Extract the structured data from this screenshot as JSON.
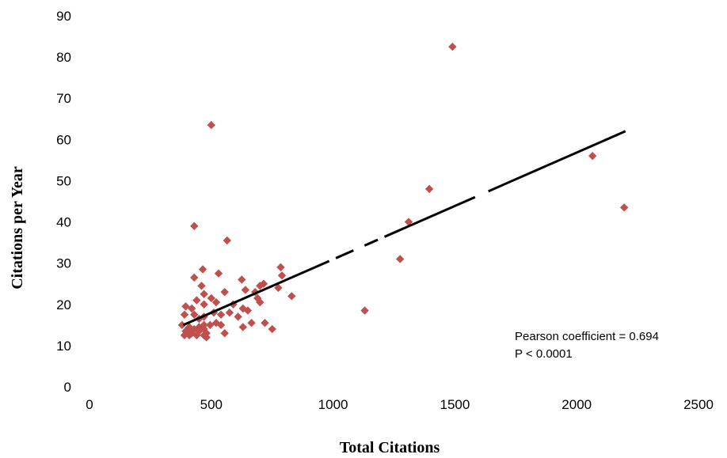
{
  "chart_data": {
    "type": "scatter",
    "title": "",
    "xlabel": "Total Citations",
    "ylabel": "Citations per Year",
    "xlim": [
      0,
      2500
    ],
    "ylim": [
      0,
      90
    ],
    "xticks": [
      0,
      500,
      1000,
      1500,
      2000,
      2500
    ],
    "yticks": [
      0,
      10,
      20,
      30,
      40,
      50,
      60,
      70,
      80,
      90
    ],
    "grid": false,
    "marker_color": "#c0504d",
    "trendline_color": "#000000",
    "annotations": [
      "Pearson coefficient = 0.694",
      "P < 0.0001"
    ],
    "trendline": {
      "x": [
        385,
        2200
      ],
      "y": [
        15,
        62
      ]
    },
    "points": [
      {
        "x": 1490,
        "y": 82.5
      },
      {
        "x": 500,
        "y": 63.5
      },
      {
        "x": 2065,
        "y": 56
      },
      {
        "x": 2195,
        "y": 43.5
      },
      {
        "x": 1395,
        "y": 48
      },
      {
        "x": 1310,
        "y": 40
      },
      {
        "x": 430,
        "y": 39
      },
      {
        "x": 565,
        "y": 35.5
      },
      {
        "x": 1275,
        "y": 31
      },
      {
        "x": 530,
        "y": 27.5
      },
      {
        "x": 465,
        "y": 28.5
      },
      {
        "x": 430,
        "y": 26.5
      },
      {
        "x": 785,
        "y": 29
      },
      {
        "x": 790,
        "y": 27
      },
      {
        "x": 625,
        "y": 26
      },
      {
        "x": 715,
        "y": 25
      },
      {
        "x": 700,
        "y": 24.5
      },
      {
        "x": 460,
        "y": 24.5
      },
      {
        "x": 775,
        "y": 24
      },
      {
        "x": 640,
        "y": 23.5
      },
      {
        "x": 680,
        "y": 23
      },
      {
        "x": 555,
        "y": 23
      },
      {
        "x": 470,
        "y": 22.5
      },
      {
        "x": 830,
        "y": 22
      },
      {
        "x": 500,
        "y": 21.5
      },
      {
        "x": 690,
        "y": 21.5
      },
      {
        "x": 440,
        "y": 21
      },
      {
        "x": 520,
        "y": 20.5
      },
      {
        "x": 700,
        "y": 20.5
      },
      {
        "x": 590,
        "y": 20
      },
      {
        "x": 470,
        "y": 20
      },
      {
        "x": 395,
        "y": 19.5
      },
      {
        "x": 630,
        "y": 19
      },
      {
        "x": 420,
        "y": 19
      },
      {
        "x": 1130,
        "y": 18.5
      },
      {
        "x": 650,
        "y": 18.5
      },
      {
        "x": 575,
        "y": 18
      },
      {
        "x": 510,
        "y": 18
      },
      {
        "x": 430,
        "y": 17.5
      },
      {
        "x": 390,
        "y": 17.5
      },
      {
        "x": 540,
        "y": 17.5
      },
      {
        "x": 610,
        "y": 17
      },
      {
        "x": 470,
        "y": 17
      },
      {
        "x": 450,
        "y": 16.5
      },
      {
        "x": 720,
        "y": 15.5
      },
      {
        "x": 665,
        "y": 15.5
      },
      {
        "x": 520,
        "y": 15.5
      },
      {
        "x": 540,
        "y": 15
      },
      {
        "x": 495,
        "y": 15
      },
      {
        "x": 470,
        "y": 15
      },
      {
        "x": 380,
        "y": 15
      },
      {
        "x": 630,
        "y": 14.5
      },
      {
        "x": 450,
        "y": 14.5
      },
      {
        "x": 410,
        "y": 14.5
      },
      {
        "x": 750,
        "y": 14
      },
      {
        "x": 470,
        "y": 14
      },
      {
        "x": 430,
        "y": 14
      },
      {
        "x": 405,
        "y": 14
      },
      {
        "x": 395,
        "y": 13.5
      },
      {
        "x": 450,
        "y": 13.5
      },
      {
        "x": 480,
        "y": 13
      },
      {
        "x": 555,
        "y": 13
      },
      {
        "x": 420,
        "y": 13
      },
      {
        "x": 390,
        "y": 12.5
      },
      {
        "x": 470,
        "y": 12.5
      },
      {
        "x": 440,
        "y": 12.5
      },
      {
        "x": 410,
        "y": 12.5
      },
      {
        "x": 480,
        "y": 12
      }
    ]
  }
}
